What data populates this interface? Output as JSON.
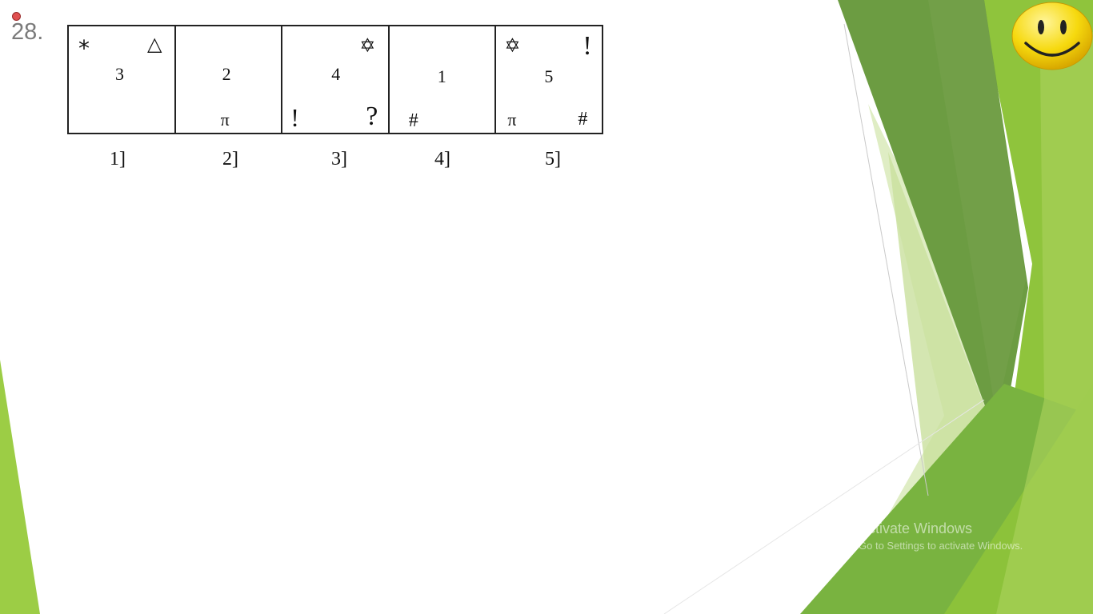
{
  "slide": {
    "question_number": "28.",
    "boxes": [
      {
        "id": 1,
        "top_left": "*",
        "top_right": "△",
        "center": "3",
        "bottom_left": "",
        "bottom_center": "",
        "bottom_right": ""
      },
      {
        "id": 2,
        "top_left": "",
        "top_right": "",
        "center": "2",
        "bottom_left": "",
        "bottom_center": "π",
        "bottom_right": ""
      },
      {
        "id": 3,
        "top_left": "",
        "top_right": "✡",
        "center": "4",
        "bottom_left": "!",
        "bottom_center": "",
        "bottom_right": "?"
      },
      {
        "id": 4,
        "top_left": "",
        "top_right": "",
        "center": "1",
        "bottom_left": "#",
        "bottom_center": "",
        "bottom_right": ""
      },
      {
        "id": 5,
        "top_left": "✡",
        "top_right": "!",
        "center": "5",
        "bottom_left": "π",
        "bottom_center": "",
        "bottom_right": "#"
      }
    ],
    "option_labels": [
      "1]",
      "2]",
      "3]",
      "4]",
      "5]"
    ]
  },
  "decoration": {
    "smiley_icon": "smiley-face-icon",
    "recording_indicator_color": "#e05050",
    "accent_greens": [
      "#8dc63f",
      "#6a9a3c",
      "#a6ce4e",
      "#dbe9bf"
    ]
  },
  "watermark": {
    "title": "Activate Windows",
    "subtitle": "Go to Settings to activate Windows."
  }
}
